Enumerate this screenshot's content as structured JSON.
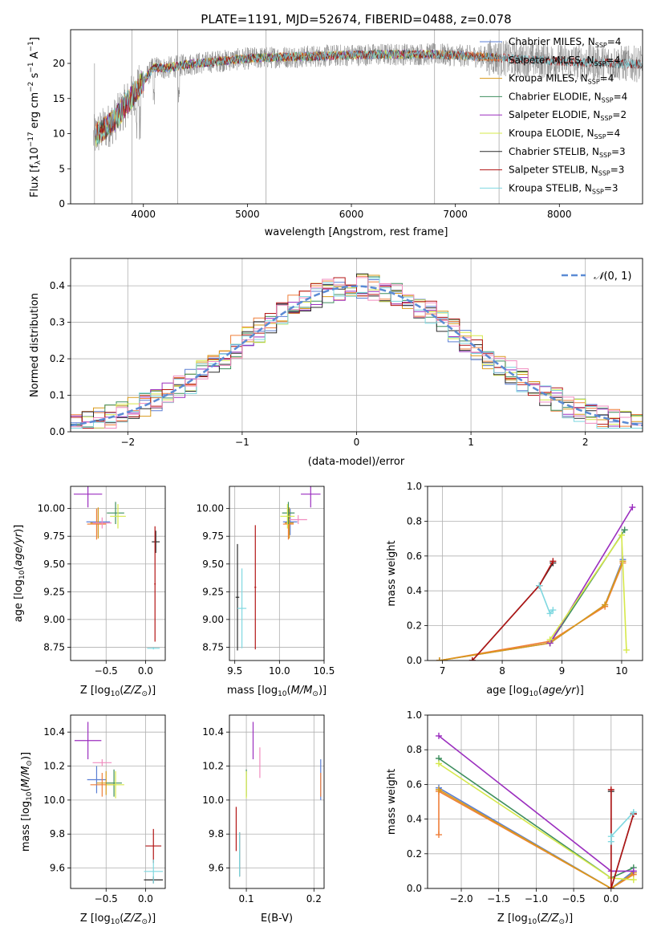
{
  "figure": {
    "title": "PLATE=1191, MJD=52674, FIBERID=0488, z=0.078"
  },
  "model_colors": [
    "#5b7fd4",
    "#ef7f3a",
    "#d99a1a",
    "#3f8f5f",
    "#9b2fbf",
    "#d6e84a",
    "#2b2b2b",
    "#b31616",
    "#7fd8e0",
    "#f08cbf"
  ],
  "chart_data": [
    {
      "id": "spectrum",
      "type": "line",
      "xlabel": "wavelength [Angstrom, rest frame]",
      "ylabel": "Flux [f_λ 10^-17 erg cm^-2 s^-1 A^-1]",
      "xlim": [
        3300,
        8800
      ],
      "ylim": [
        0,
        24.8
      ],
      "xticks": [
        4000,
        5000,
        6000,
        7000,
        8000
      ],
      "yticks": [
        0,
        5,
        10,
        15,
        20
      ],
      "grid": false,
      "legend_position": "right",
      "series": [
        {
          "name": "Chabrier MILES, N_SSP=4",
          "kind": "model"
        },
        {
          "name": "Salpeter MILES, N_SSP=4",
          "kind": "model"
        },
        {
          "name": "Kroupa MILES, N_SSP=4",
          "kind": "model"
        },
        {
          "name": "Chabrier ELODIE, N_SSP=4",
          "kind": "model"
        },
        {
          "name": "Salpeter ELODIE, N_SSP=2",
          "kind": "model"
        },
        {
          "name": "Kroupa ELODIE, N_SSP=4",
          "kind": "model"
        },
        {
          "name": "Chabrier STELIB, N_SSP=3",
          "kind": "model"
        },
        {
          "name": "Salpeter STELIB, N_SSP=3",
          "kind": "model"
        },
        {
          "name": "Kroupa STELIB, N_SSP=3",
          "kind": "model"
        }
      ],
      "continuum": {
        "x": [
          3520,
          3600,
          3700,
          3800,
          3900,
          4000,
          4100,
          4200,
          4400,
          4700,
          5000,
          5300,
          5600,
          6000,
          6400,
          6800,
          7200,
          7400,
          7600,
          8000,
          8400,
          8800
        ],
        "y": [
          9.5,
          10.5,
          11.5,
          13.5,
          15.5,
          17.5,
          19.5,
          19.3,
          19.8,
          20.3,
          20.7,
          20.9,
          21.0,
          21.2,
          21.3,
          21.3,
          21.0,
          20.8,
          20.6,
          20.3,
          20.1,
          19.9
        ]
      }
    },
    {
      "id": "residuals",
      "type": "area",
      "xlabel": "(data-model)/error",
      "ylabel": "Normed distribution",
      "xlim": [
        -2.5,
        2.5
      ],
      "ylim": [
        0,
        0.475
      ],
      "xticks": [
        -2,
        -1,
        0,
        1,
        2
      ],
      "yticks": [
        0.0,
        0.1,
        0.2,
        0.3,
        0.4
      ],
      "grid": true,
      "legend_position": "top-right",
      "legend": "N(0,1)",
      "bin_edges_start": -2.5,
      "bin_width": 0.1,
      "gaussian": {
        "mean": 0,
        "sigma": 1
      }
    },
    {
      "id": "age-vs-Z",
      "type": "scatter",
      "xlabel": "Z [log10(Z/Z⊙)]",
      "ylabel": "age [log10(age/yr)]",
      "xlim": [
        -0.95,
        0.25
      ],
      "ylim": [
        8.63,
        10.2
      ],
      "xticks": [
        -0.5,
        0.0
      ],
      "yticks": [
        8.75,
        9.0,
        9.25,
        9.5,
        9.75,
        10.0
      ],
      "grid": true,
      "points": [
        {
          "model": 0,
          "x": -0.6,
          "xerr": 0.15,
          "y": 9.88,
          "yerr": 0.12
        },
        {
          "model": 1,
          "x": -0.62,
          "xerr": 0.12,
          "y": 9.86,
          "yerr": 0.14
        },
        {
          "model": 2,
          "x": -0.6,
          "xerr": 0.1,
          "y": 9.87,
          "yerr": 0.14
        },
        {
          "model": 3,
          "x": -0.38,
          "xerr": 0.11,
          "y": 9.96,
          "yerr": 0.1
        },
        {
          "model": 4,
          "x": -0.73,
          "xerr": 0.18,
          "y": 10.13,
          "yerr": 0.12
        },
        {
          "model": 5,
          "x": -0.35,
          "xerr": 0.1,
          "y": 9.93,
          "yerr": 0.11
        },
        {
          "model": 6,
          "x": 0.13,
          "xerr": 0.05,
          "y": 9.7,
          "yerr": 0.1
        },
        {
          "model": 7,
          "x": 0.12,
          "xerr": 0.01,
          "y": 9.32,
          "yerr": 0.52
        },
        {
          "model": 8,
          "x": 0.1,
          "xerr": 0.08,
          "y": 8.74,
          "yerr": 0.01
        },
        {
          "model": 9,
          "x": -0.55,
          "xerr": 0.12,
          "y": 9.87,
          "yerr": 0.05
        }
      ]
    },
    {
      "id": "age-vs-mass",
      "type": "scatter",
      "xlabel": "mass [log10(M/M⊙)]",
      "ylabel": "",
      "xlim": [
        9.44,
        10.5
      ],
      "ylim": [
        8.63,
        10.2
      ],
      "xticks": [
        9.5,
        10.0,
        10.5
      ],
      "yticks": [
        8.75,
        9.0,
        9.25,
        9.5,
        9.75,
        10.0
      ],
      "grid": true,
      "points": [
        {
          "model": 0,
          "x": 10.12,
          "xerr": 0.08,
          "y": 9.88,
          "yerr": 0.12
        },
        {
          "model": 1,
          "x": 10.1,
          "xerr": 0.06,
          "y": 9.86,
          "yerr": 0.14
        },
        {
          "model": 2,
          "x": 10.11,
          "xerr": 0.05,
          "y": 9.87,
          "yerr": 0.14
        },
        {
          "model": 3,
          "x": 10.1,
          "xerr": 0.07,
          "y": 9.96,
          "yerr": 0.1
        },
        {
          "model": 4,
          "x": 10.35,
          "xerr": 0.11,
          "y": 10.13,
          "yerr": 0.12
        },
        {
          "model": 5,
          "x": 10.09,
          "xerr": 0.08,
          "y": 9.93,
          "yerr": 0.11
        },
        {
          "model": 6,
          "x": 9.53,
          "xerr": 0.02,
          "y": 9.2,
          "yerr": 0.48
        },
        {
          "model": 7,
          "x": 9.73,
          "xerr": 0.01,
          "y": 9.29,
          "yerr": 0.56
        },
        {
          "model": 8,
          "x": 9.58,
          "xerr": 0.05,
          "y": 9.1,
          "yerr": 0.36
        },
        {
          "model": 9,
          "x": 10.21,
          "xerr": 0.1,
          "y": 9.9,
          "yerr": 0.04
        }
      ]
    },
    {
      "id": "mass-weight-vs-age",
      "type": "line",
      "xlabel": "age [log10(age/yr)]",
      "ylabel": "mass weight",
      "xlim": [
        6.75,
        10.35
      ],
      "ylim": [
        0.0,
        1.0
      ],
      "xticks": [
        7,
        8,
        9,
        10
      ],
      "yticks": [
        0.0,
        0.2,
        0.4,
        0.6,
        0.8,
        1.0
      ],
      "grid": true,
      "series": [
        {
          "model": 0,
          "x": [
            6.95,
            8.8,
            9.72,
            10.02
          ],
          "y": [
            0.0,
            0.1,
            0.32,
            0.58
          ]
        },
        {
          "model": 1,
          "x": [
            6.95,
            8.8,
            9.72,
            10.02
          ],
          "y": [
            0.0,
            0.11,
            0.31,
            0.56
          ]
        },
        {
          "model": 2,
          "x": [
            6.95,
            8.8,
            9.72,
            10.02
          ],
          "y": [
            0.0,
            0.1,
            0.32,
            0.57
          ]
        },
        {
          "model": 3,
          "x": [
            8.8,
            10.05
          ],
          "y": [
            0.1,
            0.75
          ]
        },
        {
          "model": 4,
          "x": [
            8.8,
            10.18
          ],
          "y": [
            0.1,
            0.88
          ]
        },
        {
          "model": 5,
          "x": [
            8.8,
            10.0,
            10.08
          ],
          "y": [
            0.12,
            0.72,
            0.06
          ]
        },
        {
          "model": 6,
          "x": [
            7.5,
            8.62,
            8.85
          ],
          "y": [
            0.0,
            0.43,
            0.56
          ]
        },
        {
          "model": 7,
          "x": [
            7.5,
            8.62,
            8.85
          ],
          "y": [
            0.0,
            0.43,
            0.57
          ]
        },
        {
          "model": 8,
          "x": [
            8.62,
            8.8,
            8.85
          ],
          "y": [
            0.43,
            0.27,
            0.29
          ]
        }
      ]
    },
    {
      "id": "mass-vs-Z",
      "type": "scatter",
      "xlabel": "Z [log10(Z/Z⊙)]",
      "ylabel": "mass [log10(M/M⊙)]",
      "xlim": [
        -0.95,
        0.25
      ],
      "ylim": [
        9.48,
        10.5
      ],
      "xticks": [
        -0.5,
        0.0
      ],
      "yticks": [
        9.6,
        9.8,
        10.0,
        10.2,
        10.4
      ],
      "grid": true,
      "points": [
        {
          "model": 0,
          "x": -0.62,
          "xerr": 0.12,
          "y": 10.12,
          "yerr": 0.08
        },
        {
          "model": 1,
          "x": -0.55,
          "xerr": 0.15,
          "y": 10.09,
          "yerr": 0.07
        },
        {
          "model": 2,
          "x": -0.5,
          "xerr": 0.12,
          "y": 10.1,
          "yerr": 0.07
        },
        {
          "model": 3,
          "x": -0.4,
          "xerr": 0.1,
          "y": 10.1,
          "yerr": 0.08
        },
        {
          "model": 4,
          "x": -0.73,
          "xerr": 0.17,
          "y": 10.35,
          "yerr": 0.11
        },
        {
          "model": 5,
          "x": -0.38,
          "xerr": 0.11,
          "y": 10.09,
          "yerr": 0.08
        },
        {
          "model": 6,
          "x": 0.1,
          "xerr": 0.12,
          "y": 9.53,
          "yerr": 0.02
        },
        {
          "model": 7,
          "x": 0.1,
          "xerr": 0.1,
          "y": 9.73,
          "yerr": 0.1
        },
        {
          "model": 8,
          "x": 0.1,
          "xerr": 0.12,
          "y": 9.58,
          "yerr": 0.07
        },
        {
          "model": 9,
          "x": -0.55,
          "xerr": 0.12,
          "y": 10.22,
          "yerr": 0.02
        }
      ]
    },
    {
      "id": "mass-vs-ebv",
      "type": "scatter",
      "xlabel": "E(B-V)",
      "ylabel": "",
      "xlim": [
        0.075,
        0.215
      ],
      "ylim": [
        9.48,
        10.5
      ],
      "xticks": [
        0.1,
        0.2
      ],
      "yticks": [
        9.6,
        9.8,
        10.0,
        10.2,
        10.4
      ],
      "grid": true,
      "points": [
        {
          "model": 0,
          "x": 0.21,
          "y": 10.12,
          "yerr": 0.12
        },
        {
          "model": 1,
          "x": 0.21,
          "y": 10.09,
          "yerr": 0.07
        },
        {
          "model": 3,
          "x": 0.1,
          "y": 10.1,
          "yerr": 0.08
        },
        {
          "model": 4,
          "x": 0.11,
          "y": 10.35,
          "yerr": 0.11
        },
        {
          "model": 5,
          "x": 0.1,
          "y": 10.09,
          "yerr": 0.08
        },
        {
          "model": 6,
          "x": 0.09,
          "y": 9.68,
          "yerr": 0.13
        },
        {
          "model": 7,
          "x": 0.085,
          "y": 9.83,
          "yerr": 0.13
        },
        {
          "model": 8,
          "x": 0.09,
          "y": 9.68,
          "yerr": 0.13
        },
        {
          "model": 9,
          "x": 0.12,
          "y": 10.22,
          "yerr": 0.09
        }
      ]
    },
    {
      "id": "mass-weight-vs-Z",
      "type": "line",
      "xlabel": "Z [log10(Z/Z⊙)]",
      "ylabel": "mass weight",
      "xlim": [
        -2.45,
        0.42
      ],
      "ylim": [
        0.0,
        1.0
      ],
      "xticks": [
        -2.0,
        -1.5,
        -1.0,
        -0.5,
        0.0
      ],
      "yticks": [
        0.0,
        0.2,
        0.4,
        0.6,
        0.8,
        1.0
      ],
      "grid": true,
      "series": [
        {
          "model": 0,
          "x": [
            -2.3,
            0.0,
            0.3
          ],
          "y": [
            0.58,
            0.0,
            0.1
          ]
        },
        {
          "model": 1,
          "x": [
            -2.3,
            -2.3,
            0.0,
            0.3
          ],
          "y": [
            0.31,
            0.56,
            0.0,
            0.08
          ]
        },
        {
          "model": 2,
          "x": [
            -2.3,
            0.0,
            0.3
          ],
          "y": [
            0.57,
            0.0,
            0.09
          ]
        },
        {
          "model": 3,
          "x": [
            -2.3,
            0.0,
            0.3
          ],
          "y": [
            0.75,
            0.06,
            0.12
          ]
        },
        {
          "model": 4,
          "x": [
            -2.3,
            0.0,
            0.3
          ],
          "y": [
            0.88,
            0.1,
            0.1
          ]
        },
        {
          "model": 5,
          "x": [
            -2.3,
            0.0,
            0.3
          ],
          "y": [
            0.72,
            0.06,
            0.05
          ]
        },
        {
          "model": 6,
          "x": [
            0.0,
            0.0,
            0.3
          ],
          "y": [
            0.56,
            0.0,
            0.43
          ]
        },
        {
          "model": 7,
          "x": [
            0.0,
            0.0,
            0.3
          ],
          "y": [
            0.57,
            0.0,
            0.43
          ]
        },
        {
          "model": 8,
          "x": [
            0.0,
            0.0,
            0.3
          ],
          "y": [
            0.27,
            0.3,
            0.44
          ]
        }
      ]
    }
  ]
}
